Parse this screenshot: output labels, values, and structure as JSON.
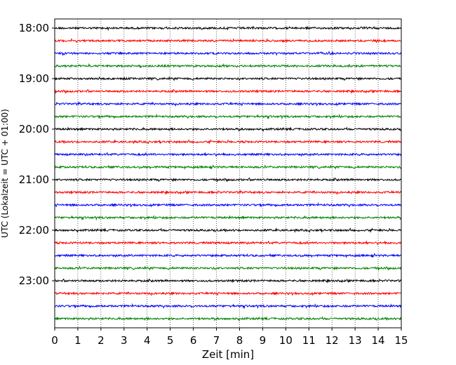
{
  "chart_data": {
    "type": "line",
    "xlabel": "Zeit  [min]",
    "ylabel": "UTC (Lokalzeit = UTC + 01:00)",
    "xlim": [
      0,
      15
    ],
    "x_ticks": [
      "0",
      "1",
      "2",
      "3",
      "4",
      "5",
      "6",
      "7",
      "8",
      "9",
      "10",
      "11",
      "12",
      "13",
      "14",
      "15"
    ],
    "y_ticks": [
      "18:00",
      "19:00",
      "20:00",
      "21:00",
      "22:00",
      "23:00"
    ],
    "trace_start": "18:00",
    "trace_interval_minutes": 15,
    "trace_count": 24,
    "trace_colors": [
      "#000000",
      "#ff0000",
      "#0000ff",
      "#008000"
    ],
    "grid": "vertical dotted at each minute",
    "legend": "none"
  }
}
